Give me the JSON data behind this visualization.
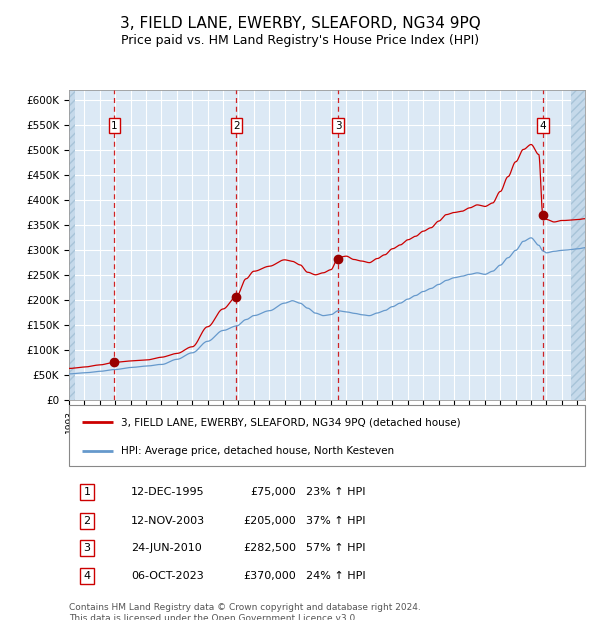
{
  "title": "3, FIELD LANE, EWERBY, SLEAFORD, NG34 9PQ",
  "subtitle": "Price paid vs. HM Land Registry's House Price Index (HPI)",
  "title_fontsize": 11,
  "subtitle_fontsize": 9,
  "bg_color": "#dce9f5",
  "grid_color": "#ffffff",
  "xmin": 1993.0,
  "xmax": 2026.5,
  "ymin": 0,
  "ymax": 620000,
  "yticks": [
    0,
    50000,
    100000,
    150000,
    200000,
    250000,
    300000,
    350000,
    400000,
    450000,
    500000,
    550000,
    600000
  ],
  "ytick_labels": [
    "£0",
    "£50K",
    "£100K",
    "£150K",
    "£200K",
    "£250K",
    "£300K",
    "£350K",
    "£400K",
    "£450K",
    "£500K",
    "£550K",
    "£600K"
  ],
  "sale_dates": [
    1995.95,
    2003.87,
    2010.48,
    2023.76
  ],
  "sale_prices": [
    75000,
    205000,
    282500,
    370000
  ],
  "sale_labels": [
    "1",
    "2",
    "3",
    "4"
  ],
  "red_line_color": "#cc0000",
  "blue_line_color": "#6699cc",
  "dot_color": "#990000",
  "vline_color": "#cc0000",
  "red_keypoints": [
    [
      1993.0,
      63000
    ],
    [
      1994.0,
      66000
    ],
    [
      1995.0,
      70000
    ],
    [
      1995.95,
      75000
    ],
    [
      1997.0,
      78000
    ],
    [
      1998.0,
      80000
    ],
    [
      1999.0,
      85000
    ],
    [
      2000.0,
      92000
    ],
    [
      2001.0,
      105000
    ],
    [
      2002.0,
      145000
    ],
    [
      2003.0,
      180000
    ],
    [
      2003.87,
      205000
    ],
    [
      2004.5,
      240000
    ],
    [
      2005.0,
      255000
    ],
    [
      2006.0,
      265000
    ],
    [
      2007.0,
      278000
    ],
    [
      2007.5,
      275000
    ],
    [
      2008.0,
      268000
    ],
    [
      2008.5,
      253000
    ],
    [
      2009.0,
      248000
    ],
    [
      2009.5,
      252000
    ],
    [
      2010.0,
      258000
    ],
    [
      2010.48,
      282500
    ],
    [
      2011.0,
      285000
    ],
    [
      2011.5,
      278000
    ],
    [
      2012.0,
      275000
    ],
    [
      2012.5,
      272000
    ],
    [
      2013.0,
      280000
    ],
    [
      2013.5,
      288000
    ],
    [
      2014.0,
      300000
    ],
    [
      2014.5,
      308000
    ],
    [
      2015.0,
      318000
    ],
    [
      2015.5,
      325000
    ],
    [
      2016.0,
      335000
    ],
    [
      2016.5,
      342000
    ],
    [
      2017.0,
      355000
    ],
    [
      2017.5,
      368000
    ],
    [
      2018.0,
      372000
    ],
    [
      2018.5,
      375000
    ],
    [
      2019.0,
      382000
    ],
    [
      2019.5,
      388000
    ],
    [
      2020.0,
      385000
    ],
    [
      2020.5,
      392000
    ],
    [
      2021.0,
      415000
    ],
    [
      2021.5,
      445000
    ],
    [
      2022.0,
      475000
    ],
    [
      2022.5,
      500000
    ],
    [
      2023.0,
      510000
    ],
    [
      2023.5,
      490000
    ],
    [
      2023.76,
      370000
    ],
    [
      2024.0,
      360000
    ],
    [
      2024.5,
      355000
    ],
    [
      2025.0,
      358000
    ],
    [
      2026.0,
      360000
    ],
    [
      2026.5,
      362000
    ]
  ],
  "blue_keypoints": [
    [
      1993.0,
      52000
    ],
    [
      1994.0,
      54000
    ],
    [
      1995.0,
      57000
    ],
    [
      1995.95,
      61000
    ],
    [
      1997.0,
      65000
    ],
    [
      1998.0,
      68000
    ],
    [
      1999.0,
      72000
    ],
    [
      2000.0,
      82000
    ],
    [
      2001.0,
      95000
    ],
    [
      2002.0,
      118000
    ],
    [
      2003.0,
      140000
    ],
    [
      2003.87,
      149000
    ],
    [
      2004.5,
      162000
    ],
    [
      2005.0,
      170000
    ],
    [
      2006.0,
      180000
    ],
    [
      2007.0,
      195000
    ],
    [
      2007.5,
      200000
    ],
    [
      2008.0,
      195000
    ],
    [
      2008.5,
      185000
    ],
    [
      2009.0,
      175000
    ],
    [
      2009.5,
      170000
    ],
    [
      2010.0,
      172000
    ],
    [
      2010.48,
      180000
    ],
    [
      2011.0,
      178000
    ],
    [
      2011.5,
      175000
    ],
    [
      2012.0,
      172000
    ],
    [
      2012.5,
      170000
    ],
    [
      2013.0,
      175000
    ],
    [
      2013.5,
      180000
    ],
    [
      2014.0,
      188000
    ],
    [
      2014.5,
      195000
    ],
    [
      2015.0,
      203000
    ],
    [
      2015.5,
      210000
    ],
    [
      2016.0,
      218000
    ],
    [
      2016.5,
      224000
    ],
    [
      2017.0,
      232000
    ],
    [
      2017.5,
      240000
    ],
    [
      2018.0,
      245000
    ],
    [
      2018.5,
      248000
    ],
    [
      2019.0,
      252000
    ],
    [
      2019.5,
      255000
    ],
    [
      2020.0,
      252000
    ],
    [
      2020.5,
      258000
    ],
    [
      2021.0,
      270000
    ],
    [
      2021.5,
      285000
    ],
    [
      2022.0,
      300000
    ],
    [
      2022.5,
      318000
    ],
    [
      2023.0,
      325000
    ],
    [
      2023.5,
      310000
    ],
    [
      2023.76,
      299000
    ],
    [
      2024.0,
      295000
    ],
    [
      2024.5,
      298000
    ],
    [
      2025.0,
      300000
    ],
    [
      2026.0,
      303000
    ],
    [
      2026.5,
      305000
    ]
  ],
  "legend_line1": "3, FIELD LANE, EWERBY, SLEAFORD, NG34 9PQ (detached house)",
  "legend_line2": "HPI: Average price, detached house, North Kesteven",
  "table_entries": [
    {
      "num": "1",
      "date": "12-DEC-1995",
      "price": "£75,000",
      "pct": "23% ↑ HPI"
    },
    {
      "num": "2",
      "date": "12-NOV-2003",
      "price": "£205,000",
      "pct": "37% ↑ HPI"
    },
    {
      "num": "3",
      "date": "24-JUN-2010",
      "price": "£282,500",
      "pct": "57% ↑ HPI"
    },
    {
      "num": "4",
      "date": "06-OCT-2023",
      "price": "£370,000",
      "pct": "24% ↑ HPI"
    }
  ],
  "footnote": "Contains HM Land Registry data © Crown copyright and database right 2024.\nThis data is licensed under the Open Government Licence v3.0."
}
